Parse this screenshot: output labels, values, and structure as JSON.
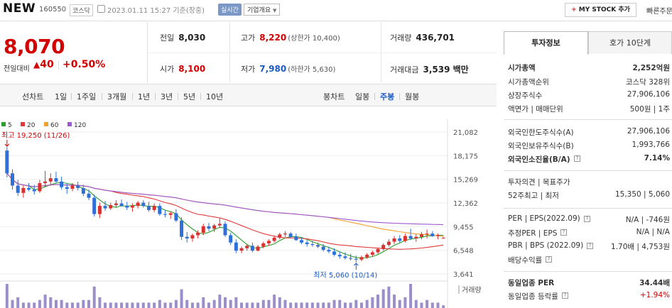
{
  "header": {
    "name": "NEW",
    "code": "160550",
    "market": "코스닥",
    "datetime": "2023.01.11 15:27 기준(장중)",
    "realtime": "실시간",
    "company_info": "기업개요",
    "mystock": "MY STOCK 추가",
    "quick": "빠른주문"
  },
  "price": {
    "current": "8,070",
    "change_label": "전일대비",
    "change_arrow": "▲",
    "change_amount": "40",
    "change_pct": "+0.50%"
  },
  "quote": {
    "prev_close": {
      "label": "전일",
      "value": "8,030"
    },
    "high": {
      "label": "고가",
      "value": "8,220",
      "sub": "(상한가 10,400)"
    },
    "volume": {
      "label": "거래량",
      "value": "436,701"
    },
    "open": {
      "label": "시가",
      "value": "8,100"
    },
    "low": {
      "label": "저가",
      "value": "7,980",
      "sub": "(하한가 5,630)"
    },
    "turnover": {
      "label": "거래대금",
      "value": "3,539 백만"
    }
  },
  "periods": {
    "line_label": "선차트",
    "line_items": [
      "1일",
      "1주일",
      "3개월",
      "1년",
      "3년",
      "5년",
      "10년"
    ],
    "candle_label": "봉차트",
    "candle_items": [
      "일봉",
      "주봉",
      "월봉"
    ],
    "active_candle": "주봉"
  },
  "chart_data": {
    "type": "candlestick",
    "legend": [
      {
        "name": "5",
        "color": "#2e9e2e"
      },
      {
        "name": "20",
        "color": "#e03a3a"
      },
      {
        "name": "60",
        "color": "#f0a030"
      },
      {
        "name": "120",
        "color": "#9b59d0"
      }
    ],
    "y_ticks": [
      21082,
      18175,
      15269,
      12362,
      9455,
      6548,
      3641
    ],
    "ylim": [
      3641,
      21082
    ],
    "high_annotation": "최고 19,250 (11/26)",
    "low_annotation": "최저 5,060 (10/14)",
    "volume_label": "거래량",
    "up_color": "#d93030",
    "down_color": "#2f6fd8",
    "candles": [
      [
        18800,
        19250,
        15500,
        16000
      ],
      [
        16000,
        16500,
        14000,
        14500
      ],
      [
        14500,
        15200,
        13200,
        13600
      ],
      [
        13600,
        14500,
        13000,
        14200
      ],
      [
        14200,
        14800,
        13800,
        14000
      ],
      [
        14000,
        14600,
        13400,
        13800
      ],
      [
        13800,
        15200,
        13600,
        14800
      ],
      [
        14800,
        16300,
        14300,
        15000
      ],
      [
        15000,
        16000,
        14500,
        15400
      ],
      [
        15400,
        16200,
        14800,
        15000
      ],
      [
        15000,
        15600,
        14000,
        14300
      ],
      [
        14300,
        14800,
        13500,
        14100
      ],
      [
        14100,
        14800,
        13800,
        14500
      ],
      [
        14500,
        15000,
        13900,
        14200
      ],
      [
        14200,
        14600,
        13200,
        13500
      ],
      [
        13500,
        14000,
        12700,
        13000
      ],
      [
        13000,
        13400,
        10700,
        11000
      ],
      [
        11000,
        12400,
        10500,
        12000
      ],
      [
        12000,
        12600,
        11400,
        11700
      ],
      [
        11700,
        12400,
        11500,
        12100
      ],
      [
        12100,
        12700,
        11800,
        12300
      ],
      [
        12300,
        12800,
        11900,
        12000
      ],
      [
        12000,
        12500,
        11500,
        11800
      ],
      [
        11800,
        12300,
        11300,
        12000
      ],
      [
        12000,
        12600,
        11700,
        12400
      ],
      [
        12400,
        12700,
        11800,
        12000
      ],
      [
        12000,
        12500,
        11300,
        11500
      ],
      [
        11500,
        12300,
        11200,
        12000
      ],
      [
        12000,
        12300,
        10800,
        11000
      ],
      [
        11000,
        11500,
        10600,
        10900
      ],
      [
        10900,
        11300,
        10400,
        11100
      ],
      [
        11100,
        11600,
        10000,
        10200
      ],
      [
        10200,
        10600,
        7800,
        8200
      ],
      [
        8200,
        8800,
        7500,
        8000
      ],
      [
        8000,
        8600,
        7600,
        8400
      ],
      [
        8400,
        9000,
        8000,
        8700
      ],
      [
        8700,
        9800,
        8400,
        9500
      ],
      [
        9500,
        9900,
        8900,
        9200
      ],
      [
        9200,
        9800,
        8800,
        9600
      ],
      [
        9600,
        10500,
        9300,
        9800
      ],
      [
        9800,
        10100,
        8200,
        8400
      ],
      [
        8400,
        8700,
        7200,
        7500
      ],
      [
        7500,
        7900,
        6200,
        6500
      ],
      [
        6500,
        7000,
        6200,
        6800
      ],
      [
        6800,
        7300,
        6500,
        7100
      ],
      [
        7100,
        7500,
        6300,
        6500
      ],
      [
        6500,
        7200,
        6400,
        7000
      ],
      [
        7000,
        7600,
        6800,
        7400
      ],
      [
        7400,
        7900,
        7100,
        7700
      ],
      [
        7700,
        8300,
        7500,
        8100
      ],
      [
        8100,
        8700,
        7900,
        8500
      ],
      [
        8500,
        8900,
        8200,
        8600
      ],
      [
        8600,
        8800,
        8000,
        8200
      ],
      [
        8200,
        8600,
        7700,
        7800
      ],
      [
        7800,
        8100,
        7300,
        7500
      ],
      [
        7500,
        7800,
        7000,
        7300
      ],
      [
        7300,
        7700,
        7000,
        7200
      ],
      [
        7200,
        7500,
        6800,
        7000
      ],
      [
        7000,
        7300,
        6400,
        6600
      ],
      [
        6600,
        7000,
        6200,
        6400
      ],
      [
        6400,
        6800,
        5800,
        6000
      ],
      [
        6000,
        6400,
        5500,
        5800
      ],
      [
        5800,
        6300,
        5400,
        5600
      ],
      [
        5600,
        6100,
        5300,
        5500
      ],
      [
        5500,
        5900,
        5060,
        5400
      ],
      [
        5400,
        5900,
        5200,
        5700
      ],
      [
        5700,
        6200,
        5500,
        6000
      ],
      [
        6000,
        6500,
        5800,
        6300
      ],
      [
        6300,
        6900,
        6100,
        6700
      ],
      [
        6700,
        7400,
        6500,
        7200
      ],
      [
        7200,
        7900,
        7000,
        7600
      ],
      [
        7600,
        8300,
        7300,
        8000
      ],
      [
        8000,
        8400,
        7500,
        7700
      ],
      [
        7700,
        8600,
        7500,
        8300
      ],
      [
        8300,
        9200,
        7800,
        8000
      ],
      [
        8000,
        8500,
        7600,
        8200
      ],
      [
        8200,
        8800,
        7900,
        8500
      ],
      [
        8500,
        9100,
        8000,
        8600
      ],
      [
        8600,
        8900,
        8200,
        8300
      ],
      [
        8300,
        8600,
        7900,
        8400
      ],
      [
        8030,
        8220,
        7980,
        8070
      ]
    ],
    "volume": [
      9,
      3,
      4,
      2,
      2,
      2,
      3,
      5,
      4,
      3,
      3,
      2,
      2,
      2,
      3,
      3,
      8,
      4,
      2,
      2,
      2,
      2,
      2,
      2,
      2,
      2,
      2,
      2,
      3,
      2,
      2,
      3,
      7,
      3,
      2,
      2,
      4,
      2,
      3,
      5,
      4,
      3,
      4,
      2,
      2,
      2,
      2,
      3,
      3,
      5,
      4,
      3,
      2,
      2,
      2,
      2,
      2,
      2,
      2,
      2,
      3,
      3,
      2,
      2,
      3,
      2,
      3,
      4,
      5,
      7,
      8,
      5,
      3,
      4,
      9,
      3,
      2,
      3,
      2,
      2,
      1
    ]
  },
  "panel": {
    "tabs": [
      "투자정보",
      "호가 10단계"
    ],
    "rows": [
      {
        "label": "시가총액",
        "value": "2,252억원",
        "bold": true
      },
      {
        "label": "시가총액순위",
        "value": "코스닥 328위"
      },
      {
        "label": "상장주식수",
        "value": "27,906,106"
      },
      {
        "label": "액면가 | 매매단위",
        "value": "500원 | 1주"
      },
      {
        "label": "외국인한도주식수(A)",
        "value": "27,906,106"
      },
      {
        "label": "외국인보유주식수(B)",
        "value": "1,993,766"
      },
      {
        "label": "외국인소진율(B/A)",
        "value": "7.14%",
        "bold": true,
        "q": true
      },
      {
        "label": "투자의견 | 목표주가",
        "value": ""
      },
      {
        "label": "52주최고 | 최저",
        "value": "15,350 | 5,060"
      },
      {
        "label": "PER | EPS(2022.09)",
        "value": "N/A | -746원",
        "q": true
      },
      {
        "label": "추정PER | EPS",
        "value": "N/A | N/A",
        "q": true
      },
      {
        "label": "PBR | BPS (2022.09)",
        "value": "1.70배 | 4,753원",
        "q": true
      },
      {
        "label": "배당수익률",
        "value": "",
        "q": true
      },
      {
        "label": "동일업종 PER",
        "value": "34.44배",
        "bold": true
      },
      {
        "label": "동일업종 등락률",
        "value": "+1.94%",
        "up": true,
        "q": true
      }
    ]
  }
}
